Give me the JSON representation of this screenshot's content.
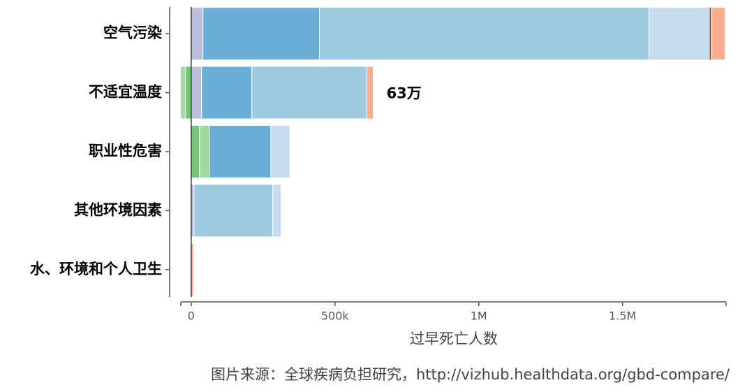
{
  "chart_data": {
    "type": "stacked-barh",
    "categories": [
      "空气污染",
      "不适宜温度",
      "职业性危害",
      "其他环境因素",
      "水、环境和个人卫生"
    ],
    "series": [
      {
        "color": "#bcbddc",
        "values": [
          41000,
          36000,
          0,
          10000,
          0
        ]
      },
      {
        "color": "#74c476",
        "values": [
          0,
          -20000,
          29000,
          0,
          0
        ]
      },
      {
        "color": "#a1d99b",
        "values": [
          0,
          -17000,
          34000,
          0,
          0
        ]
      },
      {
        "color": "#6baed6",
        "values": [
          405000,
          175000,
          214000,
          0,
          0
        ]
      },
      {
        "color": "#9ecae1",
        "values": [
          1146000,
          400000,
          0,
          274000,
          0
        ]
      },
      {
        "color": "#c6dbef",
        "values": [
          211000,
          0,
          66000,
          29000,
          0
        ]
      },
      {
        "color": "#843c39",
        "values": [
          5000,
          0,
          0,
          0,
          0
        ]
      },
      {
        "color": "#fcae91",
        "values": [
          49000,
          22000,
          0,
          0,
          8000
        ]
      }
    ],
    "xlim": [
      -36000,
      1860000
    ],
    "xticks": [
      0,
      {
        "value": 500000,
        "label": "500k"
      },
      {
        "value": 1000000,
        "label": "1M"
      },
      {
        "value": 1500000,
        "label": "1.5M"
      }
    ],
    "xlabel": "过早死亡人数",
    "annotation": "63万",
    "source": "图片来源：全球疾病负担研究，http://vizhub.healthdata.org/gbd-compare/"
  }
}
